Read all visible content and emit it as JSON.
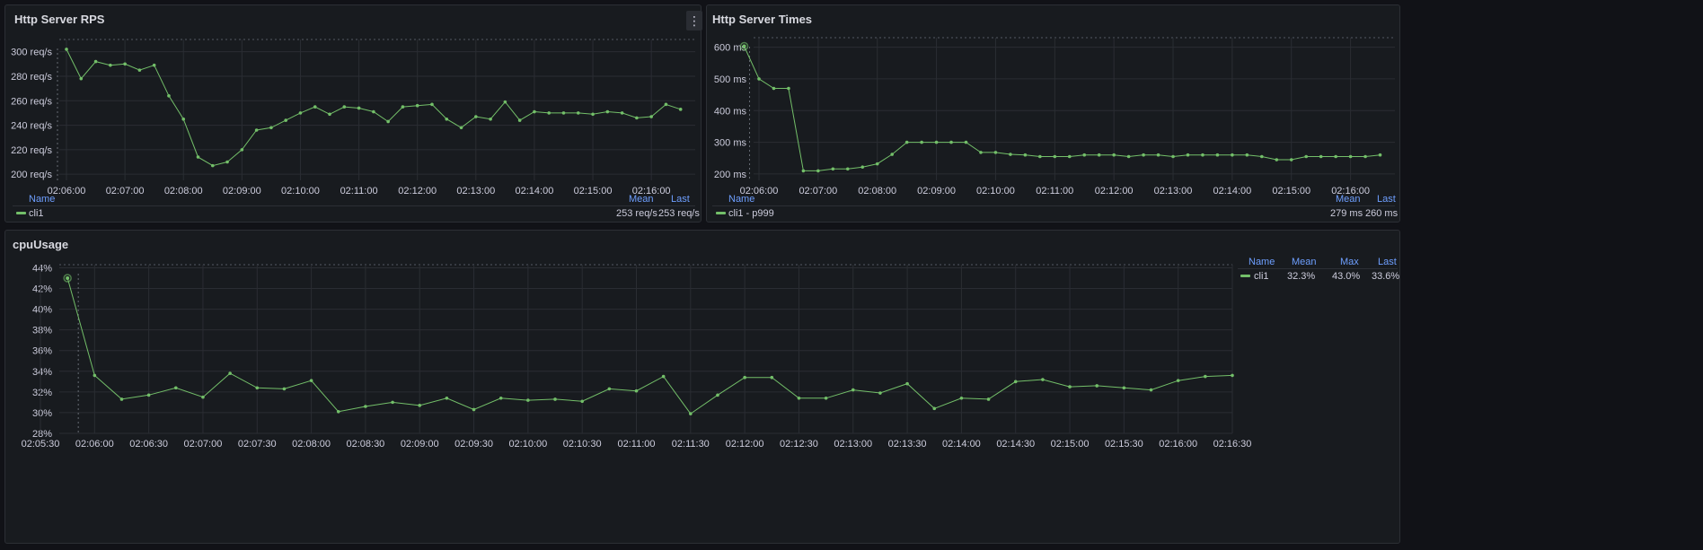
{
  "colors": {
    "series": "#73bf69",
    "grid": "#2a2d33",
    "axis_text": "#ccccdc",
    "header": "#6e9fff"
  },
  "icons": {
    "panel_menu": "vertical-ellipsis-icon"
  },
  "panels": {
    "rps": {
      "title": "Http Server RPS",
      "menu_glyph": "⋮",
      "legend": {
        "name_header": "Name",
        "mean_header": "Mean",
        "last_header": "Last",
        "rows": [
          {
            "name": "cli1",
            "mean": "253 req/s",
            "last": "253 req/s"
          }
        ]
      }
    },
    "times": {
      "title": "Http Server Times",
      "legend": {
        "name_header": "Name",
        "mean_header": "Mean",
        "last_header": "Last",
        "rows": [
          {
            "name": "cli1 - p999",
            "mean": "279 ms",
            "last": "260 ms"
          }
        ]
      }
    },
    "cpu": {
      "title": "cpuUsage",
      "legend": {
        "name_header": "Name",
        "mean_header": "Mean",
        "max_header": "Max",
        "last_header": "Last",
        "rows": [
          {
            "name": "cli1",
            "mean": "32.3%",
            "max": "43.0%",
            "last": "33.6%"
          }
        ]
      }
    }
  },
  "chart_data": [
    {
      "type": "line",
      "title": "Http Server RPS",
      "x_ticks": [
        "02:06:00",
        "02:07:00",
        "02:08:00",
        "02:09:00",
        "02:10:00",
        "02:11:00",
        "02:12:00",
        "02:13:00",
        "02:14:00",
        "02:15:00",
        "02:16:00"
      ],
      "y_ticks": [
        "200 req/s",
        "220 req/s",
        "240 req/s",
        "260 req/s",
        "280 req/s",
        "300 req/s"
      ],
      "xlim_seconds_from_tick0": [
        -15,
        645
      ],
      "ylim": [
        195,
        310
      ],
      "series": [
        {
          "name": "cli1",
          "x": [
            0,
            15,
            30,
            45,
            60,
            75,
            90,
            105,
            120,
            135,
            150,
            165,
            180,
            195,
            210,
            225,
            240,
            255,
            270,
            285,
            300,
            315,
            330,
            345,
            360,
            375,
            390,
            405,
            420,
            435,
            450,
            465,
            480,
            495,
            510,
            525,
            540,
            555,
            570,
            585,
            600,
            615,
            630
          ],
          "y": [
            302,
            278,
            292,
            289,
            290,
            285,
            289,
            264,
            245,
            214,
            207,
            210,
            220,
            236,
            238,
            244,
            250,
            255,
            249,
            255,
            254,
            251,
            243,
            255,
            256,
            257,
            245,
            238,
            247,
            245,
            259,
            244,
            251,
            250,
            250,
            250,
            249,
            251,
            250,
            246,
            247,
            257,
            253
          ]
        }
      ]
    },
    {
      "type": "line",
      "title": "Http Server Times",
      "x_ticks": [
        "02:06:00",
        "02:07:00",
        "02:08:00",
        "02:09:00",
        "02:10:00",
        "02:11:00",
        "02:12:00",
        "02:13:00",
        "02:14:00",
        "02:15:00",
        "02:16:00"
      ],
      "y_ticks": [
        "200 ms",
        "300 ms",
        "400 ms",
        "500 ms",
        "600 ms"
      ],
      "xlim_seconds_from_tick0": [
        -15,
        645
      ],
      "ylim": [
        180,
        630
      ],
      "series": [
        {
          "name": "cli1 - p999",
          "x": [
            -15,
            0,
            15,
            30,
            45,
            60,
            75,
            90,
            105,
            120,
            135,
            150,
            165,
            180,
            195,
            210,
            225,
            240,
            255,
            270,
            285,
            300,
            315,
            330,
            345,
            360,
            375,
            390,
            405,
            420,
            435,
            450,
            465,
            480,
            495,
            510,
            525,
            540,
            555,
            570,
            585,
            600,
            615,
            630
          ],
          "y": [
            603,
            500,
            470,
            470,
            210,
            210,
            216,
            216,
            222,
            232,
            262,
            300,
            300,
            300,
            300,
            300,
            268,
            268,
            262,
            260,
            255,
            255,
            255,
            260,
            260,
            260,
            255,
            260,
            260,
            255,
            260,
            260,
            260,
            260,
            260,
            255,
            245,
            245,
            255,
            255,
            255,
            255,
            255,
            260
          ]
        }
      ]
    },
    {
      "type": "line",
      "title": "cpuUsage",
      "x_ticks": [
        "02:05:30",
        "02:06:00",
        "02:06:30",
        "02:07:00",
        "02:07:30",
        "02:08:00",
        "02:08:30",
        "02:09:00",
        "02:09:30",
        "02:10:00",
        "02:10:30",
        "02:11:00",
        "02:11:30",
        "02:12:00",
        "02:12:30",
        "02:13:00",
        "02:13:30",
        "02:14:00",
        "02:14:30",
        "02:15:00",
        "02:15:30",
        "02:16:00",
        "02:16:30"
      ],
      "y_ticks": [
        "28%",
        "30%",
        "32%",
        "34%",
        "36%",
        "38%",
        "40%",
        "42%",
        "44%"
      ],
      "xlim_seconds_from_tick0": [
        0,
        660
      ],
      "ylim": [
        28,
        44.3
      ],
      "series": [
        {
          "name": "cli1",
          "x": [
            15,
            30,
            45,
            60,
            75,
            90,
            105,
            120,
            135,
            150,
            165,
            180,
            195,
            210,
            225,
            240,
            255,
            270,
            285,
            300,
            315,
            330,
            345,
            360,
            375,
            390,
            405,
            420,
            435,
            450,
            465,
            480,
            495,
            510,
            525,
            540,
            555,
            570,
            585,
            600,
            615,
            630,
            645,
            660
          ],
          "y": [
            43.0,
            33.6,
            31.3,
            31.7,
            32.4,
            31.5,
            33.8,
            32.4,
            32.3,
            33.1,
            30.1,
            30.6,
            31.0,
            30.7,
            31.4,
            30.3,
            31.4,
            31.2,
            31.3,
            31.1,
            32.3,
            32.1,
            33.5,
            29.9,
            31.7,
            33.4,
            33.4,
            31.4,
            31.4,
            32.2,
            31.9,
            32.8,
            30.4,
            31.4,
            31.3,
            33.0,
            33.2,
            32.5,
            32.6,
            32.4,
            32.2,
            33.1,
            33.5,
            33.6
          ]
        }
      ]
    }
  ]
}
